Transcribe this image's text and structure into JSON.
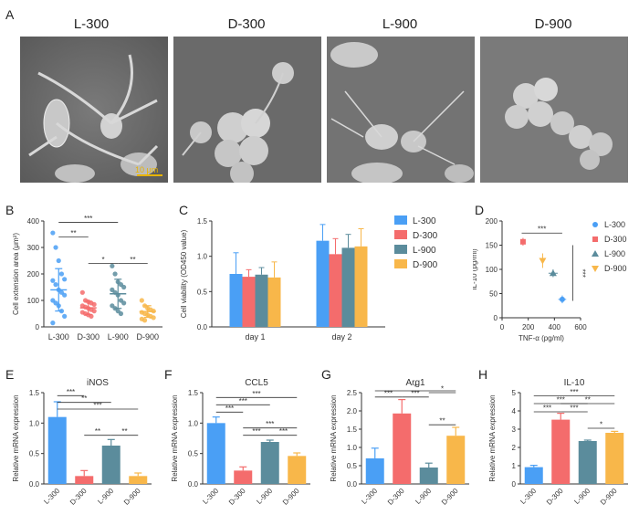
{
  "figure": {
    "panel_letters": [
      "A",
      "B",
      "C",
      "D",
      "E",
      "F",
      "G",
      "H"
    ],
    "sem_titles": [
      "L-300",
      "D-300",
      "L-900",
      "D-900"
    ],
    "scale_bar_label": "10 μm"
  },
  "colors": {
    "blue": "#4a9ff5",
    "red": "#f46c6c",
    "gray": "#5b8c9c",
    "orange": "#f8b74a"
  },
  "chart_data": [
    {
      "id": "B",
      "type": "scatter",
      "ylabel": "Cell extension area (μm²)",
      "categories": [
        "L-300",
        "D-300",
        "L-900",
        "D-900"
      ],
      "ylim": [
        0,
        400
      ],
      "yticks": [
        "0",
        "100",
        "200",
        "300",
        "400"
      ],
      "series": [
        {
          "values": [
            355,
            300,
            250,
            200,
            180,
            175,
            160,
            140,
            130,
            120,
            100,
            90,
            80,
            60,
            40,
            15
          ]
        },
        {
          "values": [
            130,
            100,
            95,
            90,
            85,
            80,
            75,
            70,
            65,
            60,
            55,
            50,
            45,
            40
          ]
        },
        {
          "values": [
            230,
            200,
            170,
            160,
            150,
            140,
            130,
            120,
            100,
            90,
            80,
            70,
            60,
            50
          ]
        },
        {
          "values": [
            100,
            80,
            70,
            65,
            60,
            55,
            50,
            45,
            40,
            35,
            30,
            25
          ]
        }
      ],
      "means": [
        140,
        72,
        125,
        58
      ],
      "sds": [
        80,
        25,
        55,
        22
      ],
      "sig": [
        {
          "pair": [
            0,
            1
          ],
          "label": "**"
        },
        {
          "pair": [
            0,
            2
          ],
          "label": "***"
        },
        {
          "pair": [
            1,
            2
          ],
          "label": "*"
        },
        {
          "pair": [
            2,
            3
          ],
          "label": "**"
        }
      ]
    },
    {
      "id": "C",
      "type": "bar",
      "ylabel": "Cell viability (OD450 value)",
      "categories": [
        "day 1",
        "day 2"
      ],
      "ylim": [
        0,
        1.5
      ],
      "yticks": [
        "0.0",
        "0.5",
        "1.0",
        "1.5"
      ],
      "series": [
        {
          "name": "L-300",
          "values": [
            0.75,
            1.22
          ],
          "err": [
            0.3,
            0.23
          ]
        },
        {
          "name": "D-300",
          "values": [
            0.71,
            1.03
          ],
          "err": [
            0.1,
            0.22
          ]
        },
        {
          "name": "L-900",
          "values": [
            0.74,
            1.12
          ],
          "err": [
            0.1,
            0.19
          ]
        },
        {
          "name": "D-900",
          "values": [
            0.7,
            1.14
          ],
          "err": [
            0.22,
            0.25
          ]
        }
      ]
    },
    {
      "id": "D",
      "type": "scatter",
      "xlabel": "TNF-α (pg/ml)",
      "ylabel": "IL-10 (pg/ml)",
      "xlim": [
        0,
        600
      ],
      "ylim": [
        0,
        200
      ],
      "xticks": [
        "0",
        "200",
        "400",
        "600"
      ],
      "yticks": [
        "0",
        "50",
        "100",
        "150",
        "200"
      ],
      "points": [
        {
          "name": "L-300",
          "x": 460,
          "y": 38,
          "xerr": 30,
          "yerr": 8
        },
        {
          "name": "D-300",
          "x": 160,
          "y": 157,
          "xerr": 15,
          "yerr": 8
        },
        {
          "name": "L-900",
          "x": 390,
          "y": 92,
          "xerr": 35,
          "yerr": 8
        },
        {
          "name": "D-900",
          "x": 310,
          "y": 118,
          "xerr": 12,
          "yerr": 15
        }
      ],
      "sig_h": "***",
      "sig_v": "***"
    },
    {
      "id": "E",
      "type": "bar",
      "title": "iNOS",
      "ylabel": "Relative mRNA expression",
      "categories": [
        "L-300",
        "D-300",
        "L-900",
        "D-900"
      ],
      "ylim": [
        0,
        1.5
      ],
      "yticks": [
        "0.0",
        "0.5",
        "1.0",
        "1.5"
      ],
      "values": [
        1.1,
        0.13,
        0.63,
        0.13
      ],
      "err": [
        0.25,
        0.09,
        0.1,
        0.05
      ],
      "sig": [
        {
          "pair": [
            0,
            1
          ],
          "label": "***",
          "y": 1.45
        },
        {
          "pair": [
            0,
            2
          ],
          "label": "**",
          "y": 1.34
        },
        {
          "pair": [
            0,
            3
          ],
          "label": "***",
          "y": 1.23
        },
        {
          "pair": [
            1,
            2
          ],
          "label": "**",
          "y": 0.8
        },
        {
          "pair": [
            2,
            3
          ],
          "label": "**",
          "y": 0.8
        }
      ]
    },
    {
      "id": "F",
      "type": "bar",
      "title": "CCL5",
      "ylabel": "Relative mRNA expression",
      "categories": [
        "L-300",
        "D-300",
        "L-900",
        "D-900"
      ],
      "ylim": [
        0,
        1.5
      ],
      "yticks": [
        "0.0",
        "0.5",
        "1.0",
        "1.5"
      ],
      "values": [
        1.0,
        0.22,
        0.69,
        0.46
      ],
      "err": [
        0.1,
        0.06,
        0.03,
        0.05
      ],
      "sig": [
        {
          "pair": [
            0,
            1
          ],
          "label": "***",
          "y": 1.18
        },
        {
          "pair": [
            0,
            2
          ],
          "label": "***",
          "y": 1.3
        },
        {
          "pair": [
            0,
            3
          ],
          "label": "***",
          "y": 1.42
        },
        {
          "pair": [
            1,
            2
          ],
          "label": "***",
          "y": 0.8
        },
        {
          "pair": [
            1,
            3
          ],
          "label": "***",
          "y": 0.92
        },
        {
          "pair": [
            2,
            3
          ],
          "label": "***",
          "y": 0.8
        }
      ]
    },
    {
      "id": "G",
      "type": "bar",
      "title": "Arg1",
      "ylabel": "Relative mRNA expression",
      "categories": [
        "L-300",
        "D-300",
        "L-900",
        "D-900"
      ],
      "ylim": [
        0,
        2.5
      ],
      "yticks": [
        "0.0",
        "0.5",
        "1.0",
        "1.5",
        "2.0",
        "2.5"
      ],
      "values": [
        0.7,
        1.93,
        0.45,
        1.32
      ],
      "err": [
        0.28,
        0.38,
        0.12,
        0.23
      ],
      "sig": [
        {
          "pair": [
            0,
            1
          ],
          "label": "***",
          "y": 2.38
        },
        {
          "pair": [
            0,
            3
          ],
          "label": "*",
          "y": 2.55
        },
        {
          "pair": [
            1,
            2
          ],
          "label": "***",
          "y": 2.38
        },
        {
          "pair": [
            2,
            3
          ],
          "label": "*",
          "y": 2.5
        },
        {
          "pair": [
            2,
            3
          ],
          "label": "**",
          "y": 1.62
        }
      ]
    },
    {
      "id": "H",
      "type": "bar",
      "title": "IL-10",
      "ylabel": "Relative mRNA expression",
      "categories": [
        "L-300",
        "D-300",
        "L-900",
        "D-900"
      ],
      "ylim": [
        0,
        5
      ],
      "yticks": [
        "0",
        "1",
        "2",
        "3",
        "4",
        "5"
      ],
      "values": [
        0.92,
        3.52,
        2.35,
        2.8
      ],
      "err": [
        0.1,
        0.35,
        0.05,
        0.08
      ],
      "sig": [
        {
          "pair": [
            0,
            1
          ],
          "label": "***",
          "y": 3.95
        },
        {
          "pair": [
            0,
            2
          ],
          "label": "***",
          "y": 4.4
        },
        {
          "pair": [
            0,
            3
          ],
          "label": "***",
          "y": 4.82
        },
        {
          "pair": [
            1,
            2
          ],
          "label": "***",
          "y": 3.95
        },
        {
          "pair": [
            1,
            3
          ],
          "label": "**",
          "y": 4.4
        },
        {
          "pair": [
            2,
            3
          ],
          "label": "*",
          "y": 3.05
        }
      ]
    }
  ]
}
